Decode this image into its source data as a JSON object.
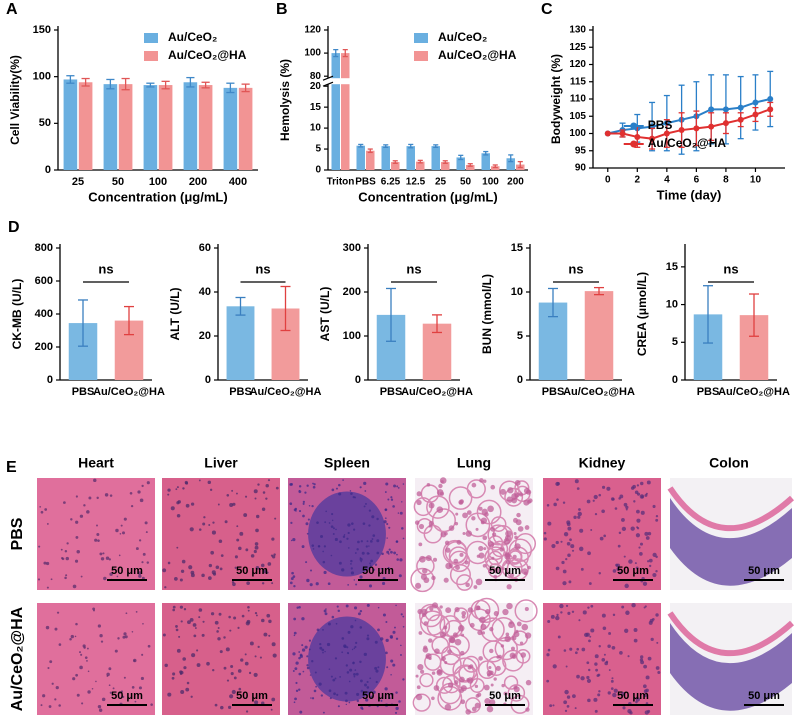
{
  "chart_data": [
    {
      "type": "bar",
      "panel": "A",
      "ylabel": "Cell Viability(%)",
      "xlabel": "Concentration (μg/mL)",
      "categories": [
        "25",
        "50",
        "100",
        "200",
        "400"
      ],
      "series": [
        {
          "name": "Au/CeO₂",
          "color": "#6aafe0",
          "error_color": "#3f88c8",
          "values": [
            97,
            92,
            91,
            94,
            88
          ],
          "errors": [
            4,
            5,
            2,
            5,
            5
          ]
        },
        {
          "name": "Au/CeO₂@HA",
          "color": "#f29494",
          "error_color": "#e05656",
          "values": [
            94,
            92,
            91,
            91,
            88
          ],
          "errors": [
            4,
            6,
            4,
            3,
            4
          ]
        }
      ],
      "ylim": [
        0,
        150
      ],
      "yticks": [
        0,
        50,
        100,
        150
      ],
      "grid": false,
      "legend": "upper right"
    },
    {
      "type": "bar",
      "panel": "B",
      "ylabel": "Hemolysis (%)",
      "xlabel": "Concentration (μg/mL)",
      "categories": [
        "Triton",
        "PBS",
        "6.25",
        "12.5",
        "25",
        "50",
        "100",
        "200"
      ],
      "series": [
        {
          "name": "Au/CeO₂",
          "color": "#6aafe0",
          "error_color": "#3f88c8",
          "values": [
            100,
            5.8,
            5.7,
            5.7,
            5.7,
            3.0,
            4.0,
            2.8
          ],
          "errors": [
            3,
            0.3,
            0.3,
            0.4,
            0.3,
            0.5,
            0.4,
            0.8
          ]
        },
        {
          "name": "Au/CeO₂@HA",
          "color": "#f29494",
          "error_color": "#e05656",
          "values": [
            100,
            4.6,
            1.9,
            2.0,
            1.9,
            1.2,
            0.9,
            1.3
          ],
          "errors": [
            3,
            0.4,
            0.3,
            0.3,
            0.3,
            0.3,
            0.3,
            0.7
          ]
        }
      ],
      "ylim": [
        0,
        120
      ],
      "axis_break": [
        20,
        80
      ],
      "yticks": [
        0,
        5,
        10,
        15,
        20,
        80,
        100,
        120
      ],
      "grid": false,
      "legend": "upper right"
    },
    {
      "type": "line",
      "panel": "C",
      "ylabel": "Bodyweight (%)",
      "xlabel": "Time (day)",
      "x": [
        0,
        1,
        2,
        3,
        4,
        5,
        6,
        7,
        8,
        9,
        10,
        11
      ],
      "series": [
        {
          "name": "PBS",
          "color": "#2a7fc8",
          "values": [
            100,
            101,
            101.5,
            102,
            103,
            104,
            105,
            107,
            107,
            107.5,
            109,
            110
          ],
          "errors": [
            0,
            2,
            4,
            7,
            8,
            10,
            10,
            10,
            10,
            9,
            8,
            8
          ]
        },
        {
          "name": "Au/CeO₂@HA",
          "color": "#e03030",
          "values": [
            100,
            100,
            99,
            98.5,
            100,
            101,
            101.5,
            102,
            103,
            104,
            105.5,
            107
          ],
          "errors": [
            0,
            1,
            3,
            3,
            4,
            5,
            5,
            4,
            3,
            2,
            2,
            2
          ]
        }
      ],
      "xlim": [
        -1,
        12
      ],
      "xticks": [
        0,
        2,
        4,
        6,
        8,
        10
      ],
      "ylim": [
        90,
        130
      ],
      "yticks": [
        90,
        95,
        100,
        105,
        110,
        115,
        120,
        125,
        130
      ],
      "grid": false,
      "legend": "lower right"
    },
    {
      "type": "bar",
      "panel": "D",
      "ylabel": "CK-MB (U/L)",
      "categories": [
        "PBS",
        "Au/CeO₂@HA"
      ],
      "values": [
        345,
        360
      ],
      "errors": [
        140,
        85
      ],
      "colors": [
        "#7ab8e2",
        "#f29b9b"
      ],
      "error_colors": [
        "#3a7fc0",
        "#e04040"
      ],
      "annotation": "ns",
      "ylim": [
        0,
        800
      ],
      "yticks": [
        0,
        200,
        400,
        600,
        800
      ],
      "grid": false
    },
    {
      "type": "bar",
      "ylabel": "ALT (U/L)",
      "categories": [
        "PBS",
        "Au/CeO₂@HA"
      ],
      "values": [
        33.5,
        32.5
      ],
      "errors": [
        4,
        10
      ],
      "colors": [
        "#7ab8e2",
        "#f29b9b"
      ],
      "error_colors": [
        "#3a7fc0",
        "#e04040"
      ],
      "annotation": "ns",
      "ylim": [
        0,
        60
      ],
      "yticks": [
        0,
        20,
        40,
        60
      ],
      "grid": false
    },
    {
      "type": "bar",
      "ylabel": "AST (U/L)",
      "categories": [
        "PBS",
        "Au/CeO₂@HA"
      ],
      "values": [
        148,
        128
      ],
      "errors": [
        60,
        20
      ],
      "colors": [
        "#7ab8e2",
        "#f29b9b"
      ],
      "error_colors": [
        "#3a7fc0",
        "#e04040"
      ],
      "annotation": "ns",
      "ylim": [
        0,
        300
      ],
      "yticks": [
        0,
        100,
        200,
        300
      ],
      "grid": false
    },
    {
      "type": "bar",
      "ylabel": "BUN (mmol/L)",
      "categories": [
        "PBS",
        "Au/CeO₂@HA"
      ],
      "values": [
        8.8,
        10.1
      ],
      "errors": [
        1.6,
        0.4
      ],
      "colors": [
        "#7ab8e2",
        "#f29b9b"
      ],
      "error_colors": [
        "#3a7fc0",
        "#e04040"
      ],
      "annotation": "ns",
      "ylim": [
        0,
        15
      ],
      "yticks": [
        0,
        5,
        10,
        15
      ],
      "grid": false
    },
    {
      "type": "bar",
      "ylabel": "CREA (μmol/L)",
      "categories": [
        "PBS",
        "Au/CeO₂@HA"
      ],
      "values": [
        8.7,
        8.6
      ],
      "errors": [
        3.8,
        2.8
      ],
      "colors": [
        "#7ab8e2",
        "#f29b9b"
      ],
      "error_colors": [
        "#3a7fc0",
        "#e04040"
      ],
      "annotation": "ns",
      "ylim": [
        0,
        17.5
      ],
      "yticks": [
        0,
        5,
        10,
        15
      ],
      "grid": false
    }
  ],
  "histology": {
    "panel": "E",
    "tissues": [
      "Heart",
      "Liver",
      "Spleen",
      "Lung",
      "Kidney",
      "Colon"
    ],
    "groups": [
      "PBS",
      "Au/CeO₂@HA"
    ],
    "scale_bar": "50 μm"
  }
}
